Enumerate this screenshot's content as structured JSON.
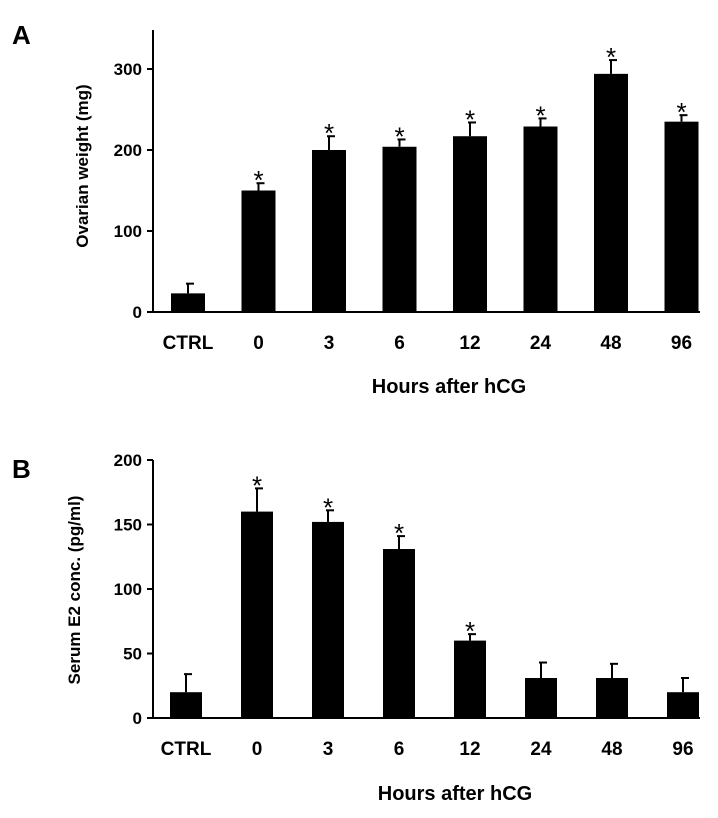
{
  "chart_data": [
    {
      "panel": "A",
      "type": "bar",
      "categories": [
        "CTRL",
        "0",
        "3",
        "6",
        "12",
        "24",
        "48",
        "96"
      ],
      "values": [
        23,
        150,
        200,
        204,
        217,
        229,
        294,
        235
      ],
      "errors": [
        12,
        9,
        17,
        9,
        17,
        10,
        17,
        8
      ],
      "significance": [
        "",
        "*",
        "*",
        "*",
        "*",
        "*",
        "*",
        "*"
      ],
      "xlabel": "Hours after hCG",
      "ylabel": "Ovarian weight (mg)",
      "ylim": [
        0,
        350
      ],
      "yticks": [
        0,
        100,
        200,
        300
      ],
      "bar_color": "#000000",
      "grid": false
    },
    {
      "panel": "B",
      "type": "bar",
      "categories": [
        "CTRL",
        "0",
        "3",
        "6",
        "12",
        "24",
        "48",
        "96"
      ],
      "values": [
        20,
        160,
        152,
        131,
        60,
        31,
        31,
        20
      ],
      "errors": [
        14,
        18,
        9,
        10,
        5,
        12,
        11,
        11
      ],
      "significance": [
        "",
        "*",
        "*",
        "*",
        "*",
        "",
        "",
        ""
      ],
      "xlabel": "Hours after hCG",
      "ylabel": "Serum E2 conc. (pg/ml)",
      "ylim": [
        0,
        200
      ],
      "yticks": [
        0,
        50,
        100,
        150,
        200
      ],
      "bar_color": "#000000",
      "grid": false
    }
  ]
}
